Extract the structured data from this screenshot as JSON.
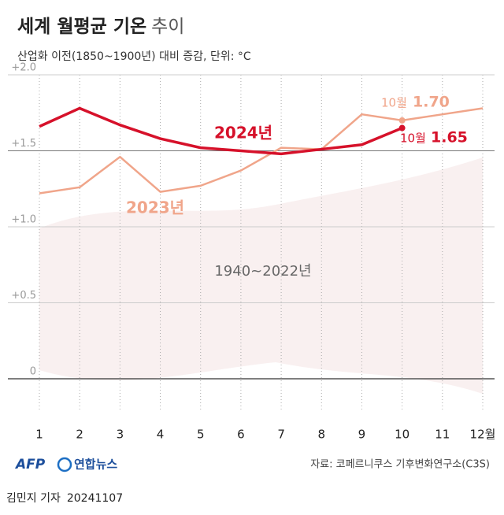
{
  "chart_data": {
    "type": "line",
    "title": "세계 월평균 기온",
    "title_suffix": "추이",
    "subtitle": "산업화 이전(1850~1900년) 대비 증감, 단위: °C",
    "categories": [
      "1",
      "2",
      "3",
      "4",
      "5",
      "6",
      "7",
      "8",
      "9",
      "10",
      "11",
      "12월"
    ],
    "series": [
      {
        "name": "2023년",
        "color": "#f0a58a",
        "values": [
          1.22,
          1.26,
          1.46,
          1.23,
          1.27,
          1.37,
          1.52,
          1.51,
          1.74,
          1.7,
          1.74,
          1.78
        ],
        "value_labels": [
          null,
          null,
          null,
          null,
          null,
          null,
          null,
          null,
          null,
          "1.70",
          null,
          null
        ]
      },
      {
        "name": "2024년",
        "color": "#d6112a",
        "values": [
          1.66,
          1.78,
          1.67,
          1.58,
          1.52,
          1.5,
          1.48,
          1.51,
          1.54,
          1.65,
          null,
          null
        ]
      }
    ],
    "annotations": {
      "month_label": "10월",
      "historical_label": "1940~2022년"
    },
    "ylim": [
      -0.2,
      2.0
    ],
    "yticks": [
      {
        "value": 0,
        "label": "0"
      },
      {
        "value": 0.5,
        "label": "+0.5"
      },
      {
        "value": 1.0,
        "label": "+1.0"
      },
      {
        "value": 1.5,
        "label": "+1.5"
      },
      {
        "value": 2.0,
        "label": "+2.0"
      }
    ],
    "grid": true
  },
  "footer": {
    "logo_afp": "AFP",
    "logo_yonhap": "연합뉴스",
    "source": "자료: 코페르니쿠스 기후변화연구소(C3S)",
    "byline": "김민지 기자",
    "date": "20241107"
  }
}
